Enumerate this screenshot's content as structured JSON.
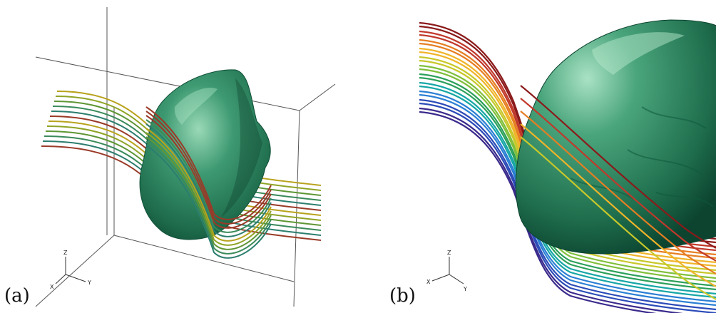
{
  "panels": [
    {
      "label": "(a)",
      "axes": {
        "z": "Z",
        "x": "X",
        "y": "Y"
      },
      "streamline_colors": [
        "#b8a21c",
        "#8fa426",
        "#5f9635",
        "#3a8a5a",
        "#2c7e6e",
        "#9a3a28"
      ]
    },
    {
      "label": "(b)",
      "axes": {
        "z": "Z",
        "x": "X",
        "y": "Y"
      },
      "streamline_colors": [
        "#8b1a1a",
        "#c0392b",
        "#e67e22",
        "#f0b429",
        "#c8c82a",
        "#7fbf3a",
        "#2ca05a",
        "#16a6a6",
        "#2a7fd4",
        "#2b4bb8",
        "#3a2a8c"
      ]
    }
  ],
  "colors": {
    "surface_dark": "#0f4f38",
    "surface_mid": "#2e8a62",
    "surface_light": "#8fd3b0",
    "box_line": "#444444"
  }
}
